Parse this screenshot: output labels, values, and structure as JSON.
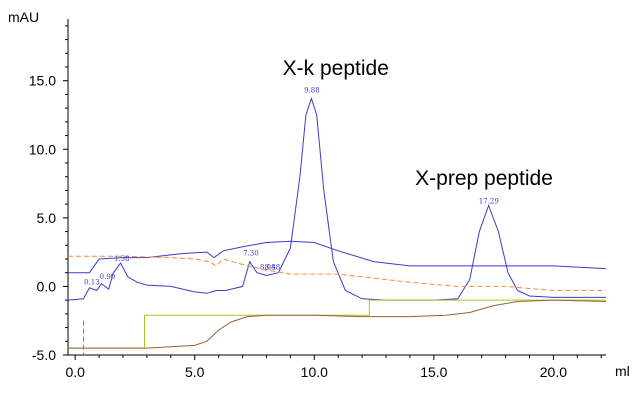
{
  "chart_data": {
    "type": "line",
    "xlabel": "ml",
    "ylabel": "mAU",
    "xlim": [
      -0.3,
      22.2
    ],
    "ylim": [
      -5.0,
      19.5
    ],
    "x_ticks": [
      {
        "v": 0.0,
        "label": "0.0"
      },
      {
        "v": 5.0,
        "label": "5.0"
      },
      {
        "v": 10.0,
        "label": "10.0"
      },
      {
        "v": 15.0,
        "label": "15.0"
      },
      {
        "v": 20.0,
        "label": "20.0"
      }
    ],
    "y_ticks": [
      {
        "v": -5.0,
        "label": "-5.0"
      },
      {
        "v": 0.0,
        "label": "0.0"
      },
      {
        "v": 5.0,
        "label": "5.0"
      },
      {
        "v": 10.0,
        "label": "10.0"
      },
      {
        "v": 15.0,
        "label": "15.0"
      }
    ],
    "annotations": [
      {
        "text": "X-k peptide",
        "x": 10.9,
        "y": 15.4
      },
      {
        "text": "X-prep peptide",
        "x": 17.1,
        "y": 7.4
      }
    ],
    "peak_labels": [
      {
        "text": "0.13",
        "x": 0.7,
        "y": 0.0
      },
      {
        "text": "0.90",
        "x": 1.35,
        "y": 0.4
      },
      {
        "text": "1.58",
        "x": 1.95,
        "y": 1.7
      },
      {
        "text": "7.30",
        "x": 7.35,
        "y": 2.1
      },
      {
        "text": "8.08",
        "x": 8.05,
        "y": 1.1
      },
      {
        "text": "8.48",
        "x": 8.25,
        "y": 1.1
      },
      {
        "text": "9.88",
        "x": 9.9,
        "y": 14.0
      },
      {
        "text": "17.29",
        "x": 17.3,
        "y": 5.9
      }
    ],
    "series": [
      {
        "color": "#3b3bd0",
        "x": [
          -0.3,
          0.35,
          0.6,
          0.9,
          1.1,
          1.4,
          1.6,
          1.9,
          2.2,
          2.6,
          3.0,
          4.0,
          5.0,
          5.5,
          5.9,
          6.3,
          7.0,
          7.3,
          7.6,
          8.0,
          8.5,
          9.0,
          9.4,
          9.65,
          9.88,
          10.1,
          10.4,
          10.8,
          11.3,
          12.0,
          13.0,
          15.0,
          16.0,
          16.5,
          16.9,
          17.29,
          17.7,
          18.1,
          18.5,
          19.0,
          20.0,
          21.0,
          22.2
        ],
        "y": [
          -1.0,
          -0.9,
          -0.1,
          -0.3,
          0.2,
          -0.2,
          1.0,
          1.7,
          0.7,
          0.3,
          0.1,
          0.0,
          -0.4,
          -0.5,
          -0.3,
          -0.3,
          0.0,
          1.8,
          1.0,
          0.8,
          1.0,
          2.8,
          8.0,
          12.5,
          13.7,
          12.5,
          7.0,
          1.8,
          -0.3,
          -0.9,
          -1.0,
          -1.0,
          -0.9,
          0.5,
          4.0,
          5.9,
          4.0,
          1.0,
          -0.3,
          -0.7,
          -0.8,
          -0.8,
          -0.8
        ]
      },
      {
        "color": "#3b3bd0",
        "x": [
          -0.3,
          0.6,
          1.0,
          2.0,
          3.0,
          4.5,
          5.5,
          5.8,
          6.2,
          7.0,
          8.0,
          9.0,
          10.0,
          11.0,
          12.5,
          14.0,
          16.0,
          18.0,
          20.0,
          22.2
        ],
        "y": [
          1.0,
          1.0,
          2.0,
          2.1,
          2.1,
          2.4,
          2.5,
          2.1,
          2.6,
          2.9,
          3.2,
          3.3,
          3.2,
          2.6,
          1.8,
          1.5,
          1.5,
          1.5,
          1.5,
          1.3
        ]
      },
      {
        "color": "#f08a3c",
        "x": [
          -0.3,
          2.0,
          4.0,
          5.0,
          5.6,
          5.9,
          6.2,
          7.0,
          8.0,
          9.0,
          10.0,
          11.0,
          12.0,
          14.0,
          16.0,
          18.0,
          20.0,
          22.2
        ],
        "y": [
          2.2,
          2.2,
          2.1,
          2.0,
          1.8,
          1.5,
          2.0,
          1.6,
          1.2,
          0.9,
          0.9,
          0.9,
          0.7,
          0.3,
          0.0,
          0.0,
          -0.3,
          -0.3
        ]
      },
      {
        "color": "#a8c820",
        "x": [
          -0.3,
          2.9,
          2.9,
          12.3,
          12.3,
          22.2
        ],
        "y": [
          -4.5,
          -4.5,
          -2.1,
          -2.1,
          -1.0,
          -1.0
        ]
      },
      {
        "color": "#9a6236",
        "x": [
          -0.3,
          3.0,
          5.0,
          5.5,
          6.0,
          6.5,
          7.2,
          8.0,
          9.0,
          10.0,
          12.0,
          14.0,
          15.5,
          16.5,
          17.5,
          18.5,
          20.0,
          22.2
        ],
        "y": [
          -4.5,
          -4.5,
          -4.3,
          -4.0,
          -3.2,
          -2.6,
          -2.2,
          -2.1,
          -2.1,
          -2.1,
          -2.2,
          -2.2,
          -2.1,
          -1.9,
          -1.4,
          -1.1,
          -1.0,
          -1.1
        ]
      },
      {
        "color": "#d040c8",
        "x": [
          0.35,
          0.35
        ],
        "y": [
          -2.5,
          -5.0
        ]
      }
    ]
  }
}
